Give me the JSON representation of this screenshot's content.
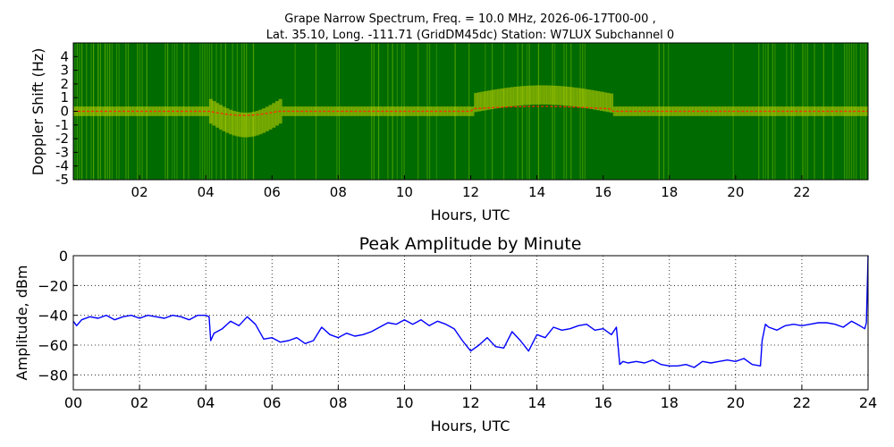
{
  "chart_data": [
    {
      "type": "heatmap",
      "title_line1": "Grape Narrow Spectrum, Freq. = 10.0 MHz, 2026-06-17T00-00 ,",
      "title_line2": "Lat.  35.10, Long. -111.71 (GridDM45dc) Station: W7LUX Subchannel 0",
      "xlabel": "Hours, UTC",
      "ylabel": "Doppler Shift (Hz)",
      "xlim": [
        0,
        24
      ],
      "ylim": [
        -5,
        5
      ],
      "xticks": [
        "02",
        "04",
        "06",
        "08",
        "10",
        "12",
        "14",
        "16",
        "18",
        "20",
        "22"
      ],
      "yticks": [
        "4",
        "3",
        "2",
        "1",
        "0",
        "-1",
        "-2",
        "-3",
        "-4",
        "-5"
      ],
      "colors": {
        "background": "#006b00",
        "mid": "#2e8b00",
        "high": "#d4e000",
        "peak": "#ff2a00"
      }
    },
    {
      "type": "line",
      "title": "Peak Amplitude by Minute",
      "xlabel": "Hours, UTC",
      "ylabel": "Amplitude, dBm",
      "xlim": [
        0,
        24
      ],
      "ylim": [
        -90,
        0
      ],
      "xticks": [
        "00",
        "02",
        "04",
        "06",
        "08",
        "10",
        "12",
        "14",
        "16",
        "18",
        "20",
        "22",
        "24"
      ],
      "yticks": [
        "0",
        "−20",
        "−40",
        "−60",
        "−80"
      ],
      "grid": true,
      "color": "#0000ff",
      "series": [
        {
          "x": [
            0.0,
            0.1,
            0.25,
            0.5,
            0.75,
            1.0,
            1.25,
            1.5,
            1.75,
            2.0,
            2.25,
            2.5,
            2.75,
            3.0,
            3.25,
            3.5,
            3.75,
            4.0,
            4.1,
            4.15,
            4.25,
            4.5,
            4.75,
            5.0,
            5.25,
            5.5,
            5.75,
            6.0,
            6.25,
            6.5,
            6.75,
            7.0,
            7.25,
            7.5,
            7.75,
            8.0,
            8.25,
            8.5,
            8.75,
            9.0,
            9.25,
            9.5,
            9.75,
            10.0,
            10.25,
            10.5,
            10.75,
            11.0,
            11.25,
            11.5,
            11.75,
            12.0,
            12.25,
            12.5,
            12.75,
            13.0,
            13.25,
            13.5,
            13.75,
            14.0,
            14.25,
            14.5,
            14.75,
            15.0,
            15.25,
            15.5,
            15.75,
            16.0,
            16.25,
            16.4,
            16.5,
            16.6,
            16.75,
            17.0,
            17.25,
            17.5,
            17.75,
            18.0,
            18.25,
            18.5,
            18.75,
            19.0,
            19.25,
            19.5,
            19.75,
            20.0,
            20.25,
            20.5,
            20.75,
            20.8,
            20.9,
            21.0,
            21.25,
            21.5,
            21.75,
            22.0,
            22.25,
            22.5,
            22.75,
            23.0,
            23.25,
            23.5,
            23.75,
            23.9,
            23.95,
            24.0
          ],
          "y": [
            -44,
            -47,
            -43,
            -41,
            -42,
            -40,
            -43,
            -41,
            -40,
            -42,
            -40,
            -41,
            -42,
            -40,
            -41,
            -43,
            -40,
            -40,
            -41,
            -57,
            -52,
            -49,
            -44,
            -47,
            -41,
            -46,
            -56,
            -55,
            -58,
            -57,
            -55,
            -59,
            -57,
            -48,
            -53,
            -55,
            -52,
            -54,
            -53,
            -51,
            -48,
            -45,
            -46,
            -43,
            -46,
            -43,
            -47,
            -44,
            -46,
            -49,
            -57,
            -64,
            -60,
            -55,
            -61,
            -62,
            -51,
            -57,
            -64,
            -53,
            -55,
            -48,
            -50,
            -49,
            -47,
            -46,
            -50,
            -49,
            -53,
            -48,
            -73,
            -71,
            -72,
            -71,
            -72,
            -70,
            -73,
            -74,
            -74,
            -73,
            -75,
            -71,
            -72,
            -71,
            -70,
            -71,
            -69,
            -73,
            -74,
            -57,
            -46,
            -48,
            -50,
            -47,
            -46,
            -47,
            -46,
            -45,
            -45,
            -46,
            -48,
            -44,
            -47,
            -49,
            -45,
            0
          ]
        }
      ]
    }
  ]
}
